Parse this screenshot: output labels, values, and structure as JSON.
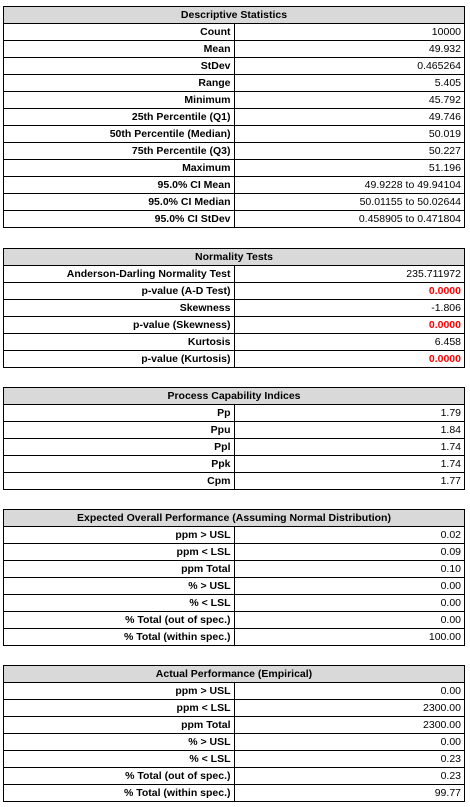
{
  "descriptive": {
    "title": "Descriptive Statistics",
    "rows": [
      {
        "label": "Count",
        "value": "10000"
      },
      {
        "label": "Mean",
        "value": "49.932"
      },
      {
        "label": "StDev",
        "value": "0.465264"
      },
      {
        "label": "Range",
        "value": "5.405"
      },
      {
        "label": "Minimum",
        "value": "45.792"
      },
      {
        "label": "25th Percentile (Q1)",
        "value": "49.746"
      },
      {
        "label": "50th Percentile (Median)",
        "value": "50.019"
      },
      {
        "label": "75th Percentile (Q3)",
        "value": "50.227"
      },
      {
        "label": "Maximum",
        "value": "51.196"
      },
      {
        "label": "95.0% CI Mean",
        "value": "49.9228 to 49.94104"
      },
      {
        "label": "95.0% CI Median",
        "value": "50.01155 to 50.02644"
      },
      {
        "label": "95.0% CI StDev",
        "value": "0.458905 to 0.471804"
      }
    ]
  },
  "normality": {
    "title": "Normality Tests",
    "rows": [
      {
        "label": "Anderson-Darling Normality Test",
        "value": "235.711972"
      },
      {
        "label": "p-value (A-D Test)",
        "value": "0.0000"
      },
      {
        "label": "Skewness",
        "value": "-1.806"
      },
      {
        "label": "p-value (Skewness)",
        "value": "0.0000"
      },
      {
        "label": "Kurtosis",
        "value": "6.458"
      },
      {
        "label": "p-value (Kurtosis)",
        "value": "0.0000"
      }
    ],
    "highlight_color": "#ff0000"
  },
  "capability": {
    "title": "Process Capability Indices",
    "rows": [
      {
        "label": "Pp",
        "value": "1.79"
      },
      {
        "label": "Ppu",
        "value": "1.84"
      },
      {
        "label": "Ppl",
        "value": "1.74"
      },
      {
        "label": "Ppk",
        "value": "1.74"
      },
      {
        "label": "Cpm",
        "value": "1.77"
      }
    ]
  },
  "expected": {
    "title": "Expected Overall Performance (Assuming Normal Distribution)",
    "rows": [
      {
        "label": "ppm > USL",
        "value": "0.02"
      },
      {
        "label": "ppm < LSL",
        "value": "0.09"
      },
      {
        "label": "ppm Total",
        "value": "0.10"
      },
      {
        "label": "% > USL",
        "value": "0.00"
      },
      {
        "label": "% < LSL",
        "value": "0.00"
      },
      {
        "label": "% Total (out of spec.)",
        "value": "0.00"
      },
      {
        "label": "% Total  (within spec.)",
        "value": "100.00"
      }
    ]
  },
  "actual": {
    "title": "Actual Performance (Empirical)",
    "rows": [
      {
        "label": "ppm > USL",
        "value": "0.00"
      },
      {
        "label": "ppm < LSL",
        "value": "2300.00"
      },
      {
        "label": "ppm Total",
        "value": "2300.00"
      },
      {
        "label": "% > USL",
        "value": "0.00"
      },
      {
        "label": "% < LSL",
        "value": "0.23"
      },
      {
        "label": "% Total (out of spec.)",
        "value": "0.23"
      },
      {
        "label": "% Total (within spec.)",
        "value": "99.77"
      }
    ]
  }
}
